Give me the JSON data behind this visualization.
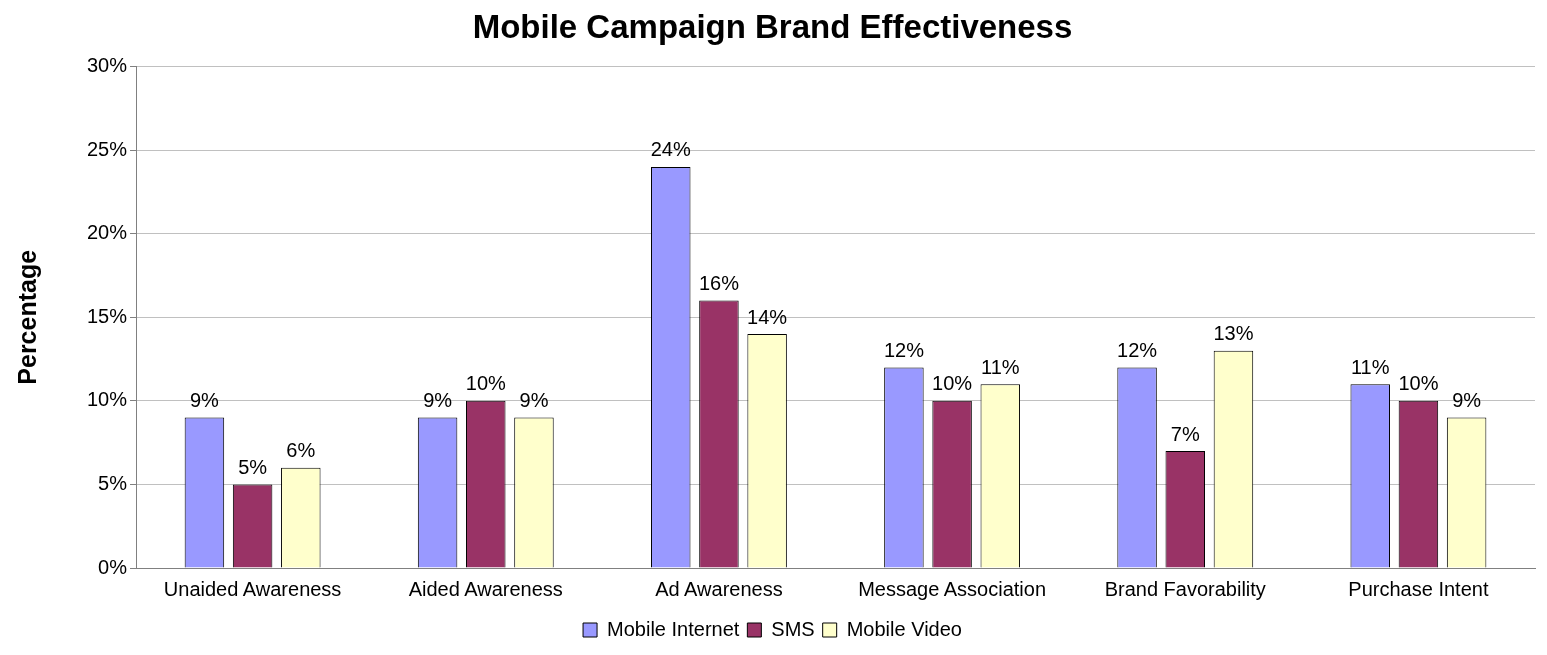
{
  "chart_data": {
    "type": "bar",
    "title": "Mobile Campaign Brand Effectiveness",
    "ylabel": "Percentage",
    "categories": [
      "Unaided Awareness",
      "Aided Awareness",
      "Ad Awareness",
      "Message Association",
      "Brand Favorability",
      "Purchase Intent"
    ],
    "series": [
      {
        "name": "Mobile Internet",
        "color": "#9999ff",
        "values": [
          9,
          9,
          24,
          12,
          12,
          11
        ],
        "value_labels": [
          "9%",
          "9%",
          "24%",
          "12%",
          "12%",
          "11%"
        ]
      },
      {
        "name": "SMS",
        "color": "#993366",
        "values": [
          5,
          10,
          16,
          10,
          7,
          10
        ],
        "value_labels": [
          "5%",
          "10%",
          "16%",
          "10%",
          "7%",
          "10%"
        ]
      },
      {
        "name": "Mobile Video",
        "color": "#ffffcc",
        "values": [
          6,
          9,
          14,
          11,
          13,
          9
        ],
        "value_labels": [
          "6%",
          "9%",
          "14%",
          "11%",
          "13%",
          "9%"
        ]
      }
    ],
    "ylim": [
      0,
      30
    ],
    "yticks": [
      {
        "value": 0,
        "label": "0%"
      },
      {
        "value": 5,
        "label": "5%"
      },
      {
        "value": 10,
        "label": "10%"
      },
      {
        "value": 15,
        "label": "15%"
      },
      {
        "value": 20,
        "label": "20%"
      },
      {
        "value": 25,
        "label": "25%"
      },
      {
        "value": 30,
        "label": "30%"
      }
    ],
    "grid": "y",
    "legend": "bottom"
  }
}
